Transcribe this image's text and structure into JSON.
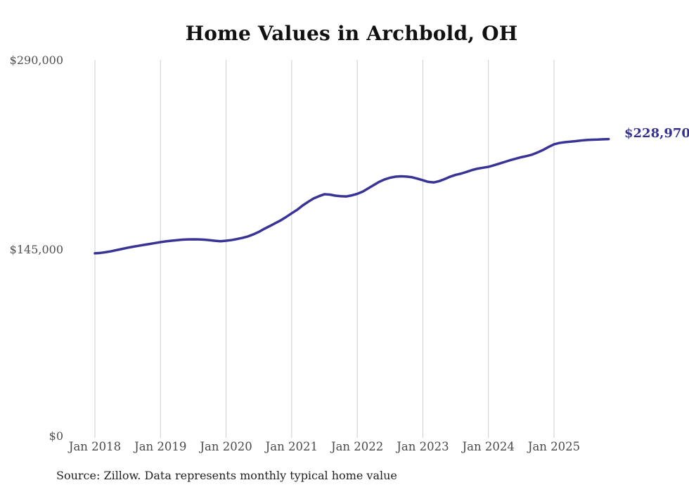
{
  "chart": {
    "title": "Home Values in Archbold, OH",
    "end_value_label": "$228,970",
    "source_note": "Source: Zillow. Data represents monthly typical home value",
    "y_axis": {
      "labels": [
        "$290,000",
        "$145,000",
        "$0"
      ]
    },
    "line_color": "#3a3396",
    "end_label_color": "#35318e",
    "grid_color": "#cccccc",
    "axis_text_color": "#4a4a4a"
  },
  "chart_data": {
    "type": "line",
    "title": "Home Values in Archbold, OH",
    "series_name": "Monthly typical home value (ZHVI)",
    "ylabel": "",
    "xlabel": "",
    "ylim": [
      0,
      290000
    ],
    "y_ticks": [
      0,
      145000,
      290000
    ],
    "y_tick_labels": [
      "$0",
      "$145,000",
      "$290,000"
    ],
    "x_tick_labels": [
      "Jan 2018",
      "Jan 2019",
      "Jan 2020",
      "Jan 2021",
      "Jan 2022",
      "Jan 2023",
      "Jan 2024",
      "Jan 2025"
    ],
    "grid": "vertical-only",
    "legend": false,
    "end_annotation": "$228,970",
    "x": [
      "2018-01",
      "2018-02",
      "2018-03",
      "2018-04",
      "2018-05",
      "2018-06",
      "2018-07",
      "2018-08",
      "2018-09",
      "2018-10",
      "2018-11",
      "2018-12",
      "2019-01",
      "2019-02",
      "2019-03",
      "2019-04",
      "2019-05",
      "2019-06",
      "2019-07",
      "2019-08",
      "2019-09",
      "2019-10",
      "2019-11",
      "2019-12",
      "2020-01",
      "2020-02",
      "2020-03",
      "2020-04",
      "2020-05",
      "2020-06",
      "2020-07",
      "2020-08",
      "2020-09",
      "2020-10",
      "2020-11",
      "2020-12",
      "2021-01",
      "2021-02",
      "2021-03",
      "2021-04",
      "2021-05",
      "2021-06",
      "2021-07",
      "2021-08",
      "2021-09",
      "2021-10",
      "2021-11",
      "2021-12",
      "2022-01",
      "2022-02",
      "2022-03",
      "2022-04",
      "2022-05",
      "2022-06",
      "2022-07",
      "2022-08",
      "2022-09",
      "2022-10",
      "2022-11",
      "2022-12",
      "2023-01",
      "2023-02",
      "2023-03",
      "2023-04",
      "2023-05",
      "2023-06",
      "2023-07",
      "2023-08",
      "2023-09",
      "2023-10",
      "2023-11",
      "2023-12",
      "2024-01",
      "2024-02",
      "2024-03",
      "2024-04",
      "2024-05",
      "2024-06",
      "2024-07",
      "2024-08",
      "2024-09",
      "2024-10",
      "2024-11",
      "2024-12",
      "2025-01",
      "2025-02",
      "2025-03",
      "2025-04",
      "2025-05",
      "2025-06",
      "2025-07",
      "2025-08",
      "2025-09",
      "2025-10",
      "2025-11"
    ],
    "values": [
      141000,
      141300,
      141900,
      142600,
      143500,
      144400,
      145300,
      146100,
      146800,
      147500,
      148200,
      148900,
      149600,
      150200,
      150700,
      151100,
      151500,
      151700,
      151800,
      151700,
      151500,
      151100,
      150600,
      150300,
      150700,
      151200,
      152000,
      152900,
      154000,
      155600,
      157500,
      159900,
      162000,
      164200,
      166400,
      169000,
      171800,
      174500,
      177800,
      180600,
      183200,
      185000,
      186500,
      186200,
      185400,
      185000,
      184800,
      185600,
      186800,
      188500,
      191000,
      193500,
      196000,
      197900,
      199200,
      200000,
      200300,
      200100,
      199600,
      198500,
      197300,
      196000,
      195600,
      196600,
      198200,
      200000,
      201400,
      202400,
      203700,
      205100,
      206200,
      206900,
      207600,
      208800,
      210100,
      211400,
      212700,
      213900,
      215000,
      215900,
      217000,
      218700,
      220600,
      222900,
      224900,
      226000,
      226600,
      227000,
      227400,
      227900,
      228300,
      228500,
      228600,
      228800,
      228970
    ]
  }
}
